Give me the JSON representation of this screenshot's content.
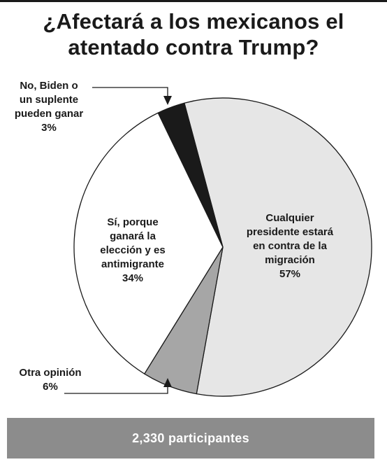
{
  "chart_data": {
    "type": "pie",
    "title_lines": [
      "¿Afectará a los mexicanos el",
      "atentado contra Trump?"
    ],
    "slices": [
      {
        "lines": [
          "Cualquier",
          "presidente estará",
          "en contra de la",
          "migración"
        ],
        "pct_label": "57%",
        "value": 57,
        "color": "#e6e6e6"
      },
      {
        "lines": [
          "Otra opinión"
        ],
        "pct_label": "6%",
        "value": 6,
        "color": "#a6a6a6"
      },
      {
        "lines": [
          "Sí, porque",
          "ganará la",
          "elección y es",
          "antimigrante"
        ],
        "pct_label": "34%",
        "value": 34,
        "color": "#ffffff"
      },
      {
        "lines": [
          "No, Biden o",
          "un suplente",
          "pueden ganar"
        ],
        "pct_label": "3%",
        "value": 3,
        "color": "#1a1a1a"
      }
    ]
  },
  "footer": {
    "participants": "2,330 participantes"
  }
}
